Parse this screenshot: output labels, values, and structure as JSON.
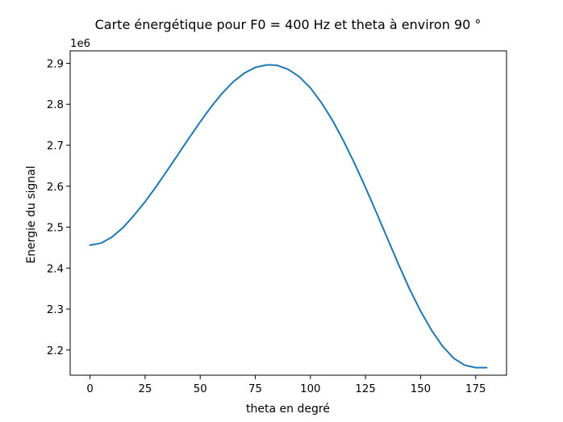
{
  "chart_data": {
    "type": "line",
    "title": "Carte énergétique pour F0 = 400 Hz et theta à environ 90 °",
    "xlabel": "theta en degré",
    "ylabel": "Energie du signal",
    "offset_label": "1e6",
    "xlim": [
      -9,
      189
    ],
    "ylim": [
      2.1385,
      2.9305
    ],
    "x_ticks": [
      0,
      25,
      50,
      75,
      100,
      125,
      150,
      175
    ],
    "y_ticks": [
      2.2,
      2.3,
      2.4,
      2.5,
      2.6,
      2.7,
      2.8,
      2.9
    ],
    "grid": false,
    "series": [
      {
        "color": "#1f77b4",
        "x": [
          0,
          5,
          10,
          15,
          20,
          25,
          30,
          35,
          40,
          45,
          50,
          55,
          60,
          65,
          70,
          75,
          80,
          82,
          85,
          90,
          95,
          100,
          105,
          110,
          115,
          120,
          125,
          130,
          135,
          140,
          145,
          150,
          155,
          160,
          165,
          170,
          175,
          180
        ],
        "y": [
          2.456,
          2.461,
          2.476,
          2.499,
          2.529,
          2.562,
          2.599,
          2.638,
          2.678,
          2.718,
          2.757,
          2.794,
          2.827,
          2.855,
          2.876,
          2.89,
          2.896,
          2.896,
          2.895,
          2.885,
          2.867,
          2.84,
          2.804,
          2.761,
          2.711,
          2.656,
          2.597,
          2.535,
          2.472,
          2.409,
          2.349,
          2.295,
          2.248,
          2.209,
          2.18,
          2.163,
          2.157,
          2.157
        ]
      }
    ]
  }
}
